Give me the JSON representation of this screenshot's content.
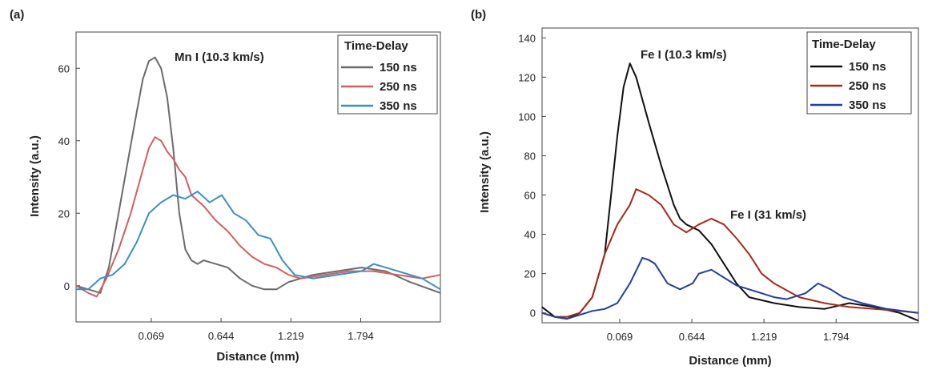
{
  "chart_data": [
    {
      "type": "line",
      "panel_label": "(a)",
      "xlabel": "Distance (mm)",
      "ylabel": "Intensity (a.u.)",
      "xlim": [
        -0.55,
        2.45
      ],
      "ylim": [
        -10,
        70
      ],
      "xticks": [
        0.069,
        0.644,
        1.219,
        1.794
      ],
      "xtick_labels": [
        "0.069",
        "0.644",
        "1.219",
        "1.794"
      ],
      "yticks": [
        0,
        20,
        40,
        60
      ],
      "ytick_labels": [
        "0",
        "20",
        "40",
        "60"
      ],
      "annotation": "Mn I (10.3 km/s)",
      "legend": {
        "title": "Time-Delay",
        "placement": "top-right"
      },
      "series": [
        {
          "name": "150 ns",
          "color": "#6b6b6b",
          "x": [
            -0.55,
            -0.45,
            -0.35,
            -0.28,
            -0.2,
            -0.12,
            -0.05,
            0.0,
            0.05,
            0.1,
            0.15,
            0.2,
            0.25,
            0.3,
            0.35,
            0.4,
            0.45,
            0.5,
            0.6,
            0.7,
            0.8,
            0.9,
            1.0,
            1.1,
            1.2,
            1.4,
            1.6,
            1.8,
            2.0,
            2.2,
            2.45
          ],
          "y": [
            0,
            -1,
            -2,
            5,
            20,
            35,
            48,
            57,
            62,
            63,
            60,
            52,
            38,
            20,
            10,
            7,
            6,
            7,
            6,
            5,
            2,
            0,
            -1,
            -1,
            1,
            3,
            4,
            5,
            4,
            1,
            -2
          ]
        },
        {
          "name": "250 ns",
          "color": "#d0605f",
          "x": [
            -0.55,
            -0.45,
            -0.38,
            -0.3,
            -0.2,
            -0.1,
            0.0,
            0.05,
            0.1,
            0.15,
            0.2,
            0.25,
            0.3,
            0.35,
            0.4,
            0.5,
            0.6,
            0.7,
            0.8,
            0.9,
            1.0,
            1.1,
            1.2,
            1.3,
            1.5,
            1.7,
            1.9,
            2.1,
            2.3,
            2.45
          ],
          "y": [
            0,
            -2,
            -3,
            2,
            10,
            20,
            32,
            38,
            41,
            40,
            37,
            35,
            32,
            30,
            25,
            22,
            18,
            15,
            11,
            8,
            6,
            5,
            3,
            2,
            3,
            4,
            4,
            3,
            2,
            3
          ]
        },
        {
          "name": "350 ns",
          "color": "#3d8ec4",
          "x": [
            -0.55,
            -0.45,
            -0.35,
            -0.25,
            -0.15,
            -0.05,
            0.05,
            0.15,
            0.25,
            0.35,
            0.45,
            0.55,
            0.65,
            0.75,
            0.85,
            0.95,
            1.05,
            1.1,
            1.15,
            1.25,
            1.4,
            1.6,
            1.8,
            1.9,
            2.0,
            2.1,
            2.2,
            2.3,
            2.45
          ],
          "y": [
            -1,
            -1,
            2,
            3,
            6,
            12,
            20,
            23,
            25,
            24,
            26,
            23,
            25,
            20,
            18,
            14,
            13,
            10,
            7,
            3,
            2,
            3,
            4,
            6,
            5,
            4,
            3,
            2,
            -1
          ]
        }
      ]
    },
    {
      "type": "line",
      "panel_label": "(b)",
      "xlabel": "Distance (mm)",
      "ylabel": "Intensity (a.u.)",
      "xlim": [
        -0.55,
        2.45
      ],
      "ylim": [
        -5,
        145
      ],
      "xticks": [
        0.069,
        0.644,
        1.219,
        1.794
      ],
      "xtick_labels": [
        "0.069",
        "0.644",
        "1.219",
        "1.794"
      ],
      "yticks": [
        0,
        20,
        40,
        60,
        80,
        100,
        120,
        140
      ],
      "ytick_labels": [
        "0",
        "20",
        "40",
        "60",
        "80",
        "100",
        "120",
        "140"
      ],
      "annotations": [
        "Fe I (10.3 km/s)",
        "Fe I (31 km/s)"
      ],
      "legend": {
        "title": "Time-Delay",
        "placement": "top-right"
      },
      "series": [
        {
          "name": "150 ns",
          "color": "#111111",
          "x": [
            -0.55,
            -0.45,
            -0.35,
            -0.25,
            -0.15,
            -0.05,
            0.0,
            0.05,
            0.1,
            0.15,
            0.2,
            0.3,
            0.4,
            0.5,
            0.55,
            0.6,
            0.7,
            0.8,
            0.9,
            1.0,
            1.1,
            1.3,
            1.5,
            1.7,
            1.9,
            2.1,
            2.3,
            2.45
          ],
          "y": [
            3,
            -2,
            -3,
            0,
            8,
            30,
            60,
            90,
            115,
            127,
            120,
            97,
            75,
            55,
            48,
            45,
            42,
            35,
            25,
            15,
            8,
            5,
            3,
            2,
            5,
            3,
            0,
            -4
          ]
        },
        {
          "name": "250 ns",
          "color": "#a52a1a",
          "x": [
            -0.55,
            -0.45,
            -0.35,
            -0.25,
            -0.15,
            -0.05,
            0.05,
            0.15,
            0.2,
            0.3,
            0.4,
            0.5,
            0.55,
            0.6,
            0.7,
            0.8,
            0.9,
            1.0,
            1.1,
            1.2,
            1.3,
            1.5,
            1.7,
            1.9,
            2.1,
            2.3,
            2.45
          ],
          "y": [
            0,
            -2,
            -2,
            0,
            8,
            30,
            45,
            55,
            63,
            60,
            55,
            45,
            43,
            41,
            45,
            48,
            45,
            38,
            30,
            20,
            15,
            8,
            5,
            3,
            2,
            1,
            0
          ]
        },
        {
          "name": "350 ns",
          "color": "#233f9a",
          "x": [
            -0.55,
            -0.45,
            -0.35,
            -0.25,
            -0.15,
            -0.05,
            0.05,
            0.15,
            0.25,
            0.3,
            0.35,
            0.45,
            0.55,
            0.65,
            0.7,
            0.8,
            0.9,
            1.0,
            1.1,
            1.2,
            1.3,
            1.4,
            1.55,
            1.65,
            1.75,
            1.85,
            2.0,
            2.2,
            2.45
          ],
          "y": [
            0,
            -2,
            -3,
            -1,
            1,
            2,
            5,
            15,
            28,
            27,
            25,
            15,
            12,
            15,
            20,
            22,
            18,
            14,
            12,
            10,
            8,
            7,
            10,
            15,
            12,
            8,
            5,
            2,
            0
          ]
        }
      ]
    }
  ]
}
